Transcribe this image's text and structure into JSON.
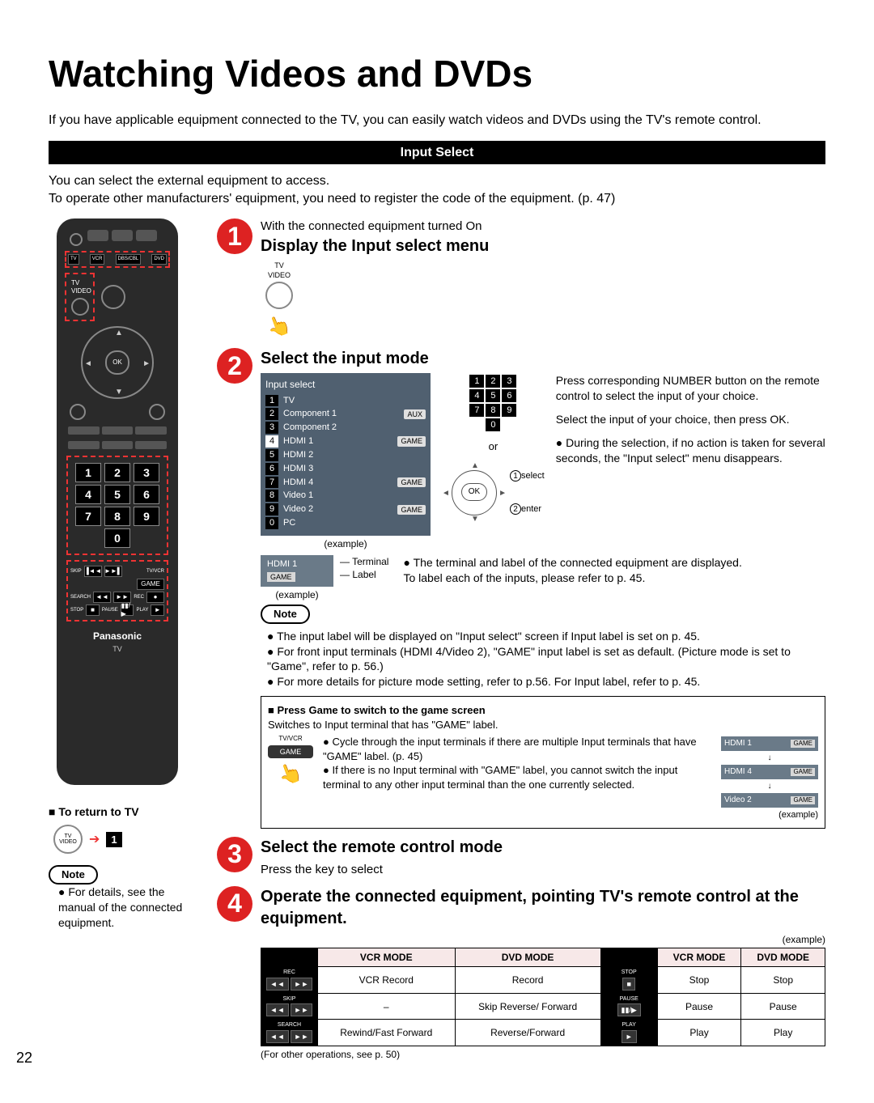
{
  "page_number": "22",
  "title": "Watching Videos and DVDs",
  "intro": "If you have applicable equipment connected to the TV, you can easily watch videos and DVDs using the TV's remote control.",
  "input_select_bar": "Input Select",
  "subintro": "You can select the external equipment to access.\nTo operate other manufacturers' equipment, you need to register the code of the equipment. (p. 47)",
  "remote": {
    "brand": "Panasonic",
    "brand_sub": "TV",
    "modes": [
      "TV",
      "VCR",
      "DBS/CBL",
      "DVD"
    ],
    "tvvideo": "TV\nVIDEO",
    "ok": "OK",
    "numpad": [
      "1",
      "2",
      "3",
      "4",
      "5",
      "6",
      "7",
      "8",
      "9",
      "0"
    ],
    "play_labels": {
      "skip": "SKIP",
      "tvvcr": "TV/VCR",
      "game": "GAME",
      "search": "SEARCH",
      "rec": "REC",
      "stop": "STOP",
      "pause": "PAUSE",
      "play": "PLAY"
    }
  },
  "return_tv": {
    "heading": "■ To return to TV",
    "tvvideo": "TV\nVIDEO",
    "key": "1"
  },
  "leftnote": {
    "pill": "Note",
    "text": "For details, see the manual of the connected equipment."
  },
  "step1": {
    "num": "1",
    "pretext": "With the connected equipment turned On",
    "heading": "Display the Input select menu",
    "btn": "TV\nVIDEO"
  },
  "step2": {
    "num": "2",
    "heading": "Select the input mode",
    "menu": {
      "title": "Input select",
      "items": [
        {
          "n": "1",
          "label": "TV",
          "tag": ""
        },
        {
          "n": "2",
          "label": "Component 1",
          "tag": "AUX"
        },
        {
          "n": "3",
          "label": "Component 2",
          "tag": ""
        },
        {
          "n": "4",
          "label": "HDMI 1",
          "tag": "GAME",
          "white": true
        },
        {
          "n": "5",
          "label": "HDMI 2",
          "tag": ""
        },
        {
          "n": "6",
          "label": "HDMI 3",
          "tag": ""
        },
        {
          "n": "7",
          "label": "HDMI 4",
          "tag": "GAME"
        },
        {
          "n": "8",
          "label": "Video 1",
          "tag": ""
        },
        {
          "n": "9",
          "label": "Video 2",
          "tag": "GAME"
        },
        {
          "n": "0",
          "label": "PC",
          "tag": ""
        }
      ],
      "example": "(example)"
    },
    "or": "or",
    "ok": "OK",
    "select_label": "select",
    "enter_label": "enter",
    "right1": "Press corresponding NUMBER button on the remote control to select the input of your choice.",
    "right2": "Select the input of your choice, then press OK.",
    "right3": "During the selection, if no action is taken for several seconds, the \"Input select\" menu disappears.",
    "terminal": {
      "hdmi": "HDMI 1",
      "game": "GAME",
      "t": "Terminal",
      "l": "Label",
      "example": "(example)"
    },
    "right4_a": "The terminal and label of the connected equipment are displayed.",
    "right4_b": "To label each of the inputs, please refer to p. 45.",
    "note_pill": "Note",
    "notes": [
      "The input label will be displayed on \"Input select\" screen if Input label is set on p. 45.",
      "For front input terminals (HDMI 4/Video 2), \"GAME\" input label is set as default. (Picture mode is set to \"Game\", refer to p. 56.)",
      "For more details for picture mode setting, refer to p.56. For Input label, refer to p. 45."
    ],
    "game": {
      "heading": "Press Game to switch to the game screen",
      "sub": "Switches to Input terminal that has \"GAME\" label.",
      "btn_top": "TV/VCR",
      "btn_bot": "GAME",
      "b1": "Cycle through the input terminals if there are multiple Input terminals that have \"GAME\" label. (p. 45)",
      "b2": "If there is no Input terminal with \"GAME\" label, you cannot switch the input terminal to any other input terminal than the one currently selected.",
      "cycle": [
        {
          "t": "HDMI 1",
          "g": "GAME"
        },
        {
          "t": "HDMI 4",
          "g": "GAME"
        },
        {
          "t": "Video 2",
          "g": "GAME"
        }
      ],
      "example": "(example)"
    }
  },
  "step3": {
    "num": "3",
    "heading": "Select the remote control mode",
    "sub": "Press the key to select"
  },
  "step4": {
    "num": "4",
    "heading": "Operate the connected equipment, pointing TV's remote control at the equipment.",
    "caption": "(example)",
    "cols": [
      "",
      "VCR MODE",
      "DVD MODE",
      "",
      "VCR MODE",
      "DVD MODE"
    ],
    "rows": [
      {
        "b1": "REC",
        "c1": "VCR Record",
        "c2": "Record",
        "b2": "STOP",
        "c3": "Stop",
        "c4": "Stop"
      },
      {
        "b1": "SKIP",
        "c1": "–",
        "c2": "Skip Reverse/ Forward",
        "b2": "PAUSE",
        "c3": "Pause",
        "c4": "Pause"
      },
      {
        "b1": "SEARCH",
        "c1": "Rewind/Fast Forward",
        "c2": "Reverse/Forward",
        "b2": "PLAY",
        "c3": "Play",
        "c4": "Play"
      }
    ],
    "foot": "(For other operations, see p. 50)"
  }
}
